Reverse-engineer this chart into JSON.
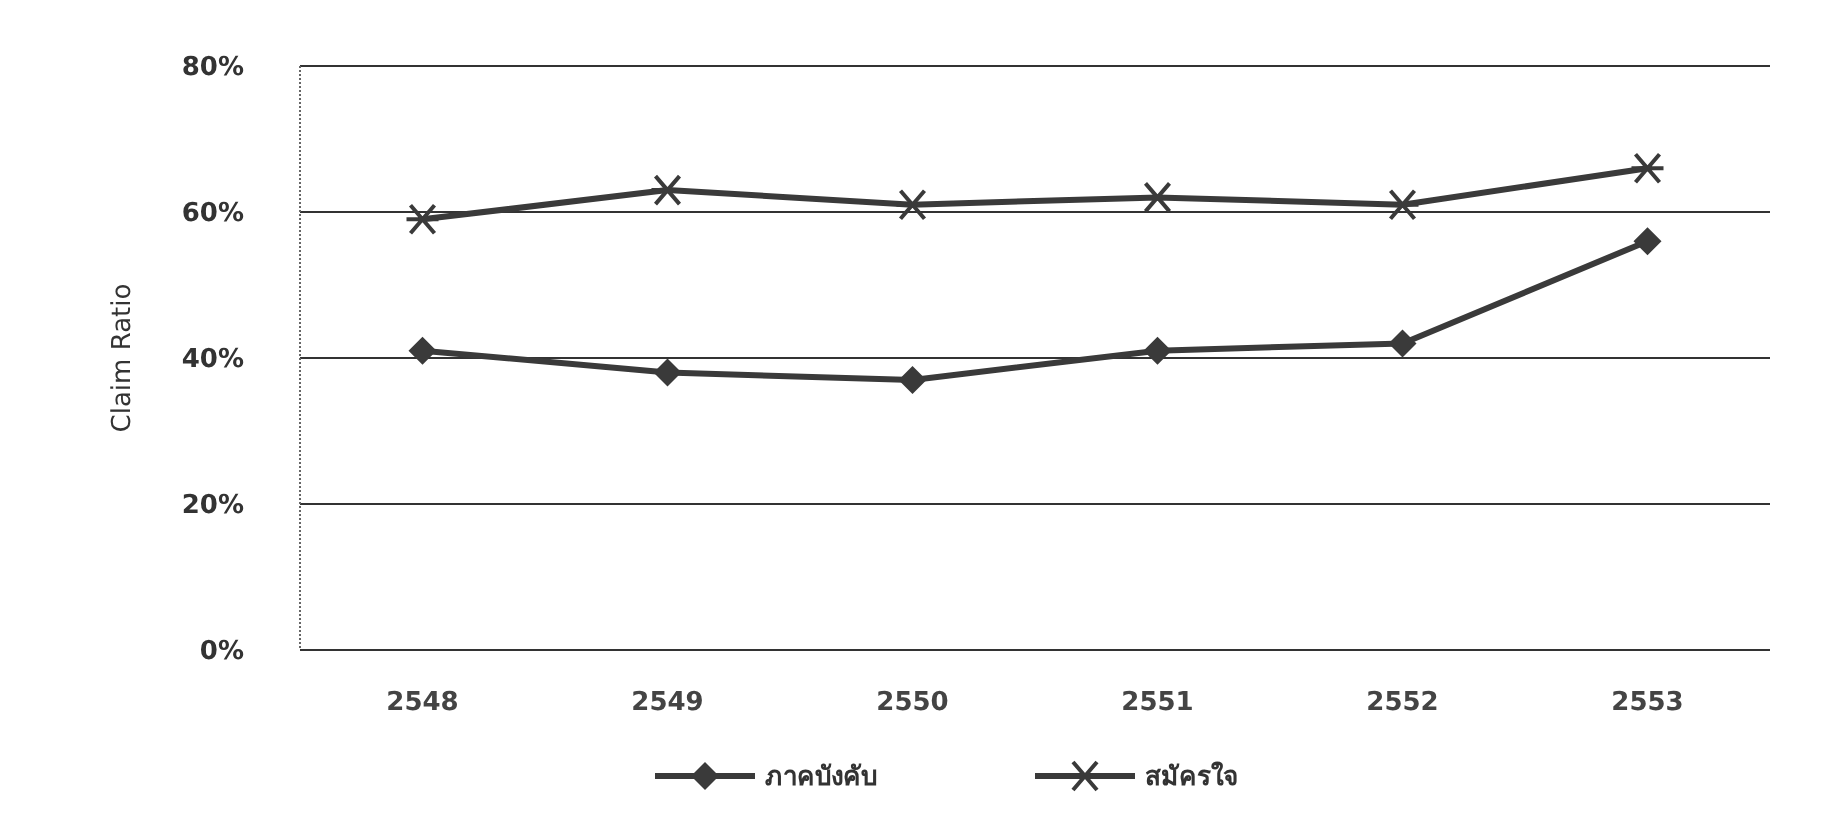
{
  "chart_data": {
    "type": "line",
    "ylabel": "Claim Ratio",
    "categories": [
      "2548",
      "2549",
      "2550",
      "2551",
      "2552",
      "2553"
    ],
    "series": [
      {
        "name": "ภาคบังคับ",
        "color": "#3a3a3a",
        "marker": "diamond",
        "values": [
          0.41,
          0.38,
          0.37,
          0.41,
          0.42,
          0.56
        ]
      },
      {
        "name": "สมัครใจ",
        "color": "#3a3a3a",
        "marker": "cross",
        "values": [
          0.59,
          0.63,
          0.61,
          0.62,
          0.61,
          0.66
        ]
      }
    ],
    "ylim": [
      0,
      0.8
    ],
    "yticks": [
      {
        "value": 0,
        "label": "0%"
      },
      {
        "value": 0.2,
        "label": "20%"
      },
      {
        "value": 0.4,
        "label": "40%"
      },
      {
        "value": 0.6,
        "label": "60%"
      },
      {
        "value": 0.8,
        "label": "80%"
      }
    ],
    "grid": "y",
    "legend": "bottom",
    "line_style": "solid"
  }
}
